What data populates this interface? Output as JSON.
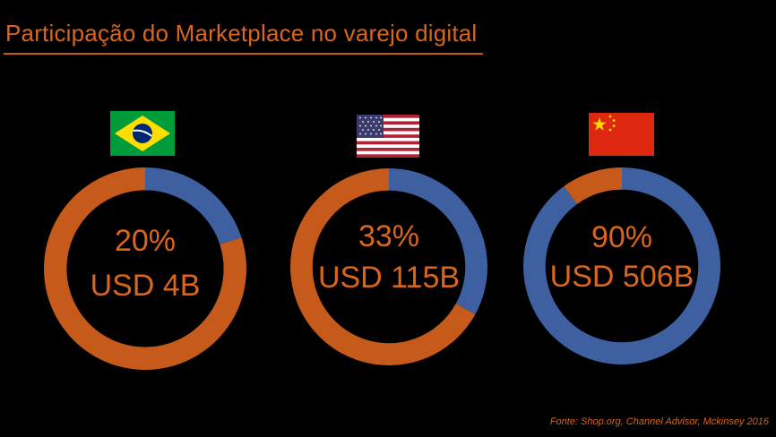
{
  "title": "Participação do Marketplace no varejo digital",
  "source": "Fonte: Shop.org, Channel Advisor, Mckinsey 2016",
  "colors": {
    "marketplace": "#3e5fa0",
    "other": "#c55a1a",
    "text": "#d9661b",
    "background": "#000000"
  },
  "chart_data": [
    {
      "type": "pie",
      "flag": "brazil-flag",
      "values": [
        20,
        80
      ],
      "percent_label": "20%",
      "value_label": "USD 4B"
    },
    {
      "type": "pie",
      "flag": "usa-flag",
      "values": [
        33,
        67
      ],
      "percent_label": "33%",
      "value_label": "USD 115B"
    },
    {
      "type": "pie",
      "flag": "china-flag",
      "values": [
        90,
        10
      ],
      "percent_label": "90%",
      "value_label": "USD 506B"
    }
  ]
}
